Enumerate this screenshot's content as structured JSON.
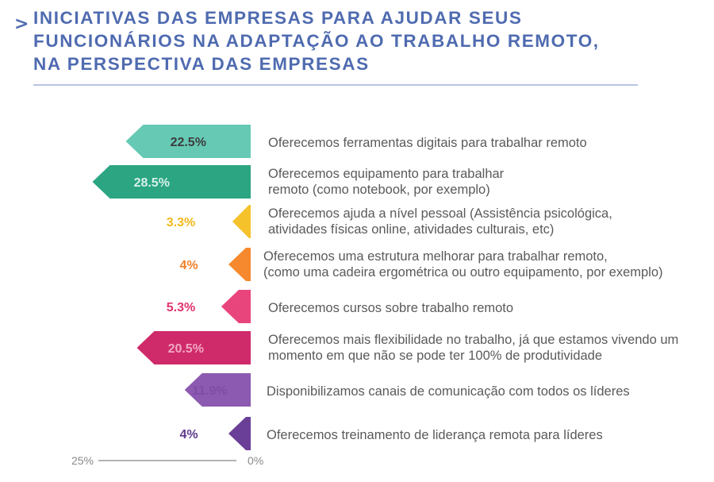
{
  "header": {
    "chevron": ">",
    "title_lines": [
      "INICIATIVAS DAS EMPRESAS PARA AJUDAR SEUS",
      "FUNCIONÁRIOS NA ADAPTAÇÃO AO TRABALHO REMOTO,",
      "NA PERSPECTIVA DAS EMPRESAS"
    ]
  },
  "chart_data": {
    "type": "bar",
    "orientation": "horizontal",
    "unit": "%",
    "axis": {
      "left_label": "25%",
      "right_label": "0%"
    },
    "categories": [
      [
        "Oferecemos ferramentas digitais para trabalhar remoto"
      ],
      [
        "Oferecemos equipamento para trabalhar",
        "remoto (como notebook, por exemplo)"
      ],
      [
        "Oferecemos ajuda a nível pessoal (Assistência psicológica,",
        "atividades físicas online, atividades culturais, etc)"
      ],
      [
        "Oferecemos uma estrutura melhorar para trabalhar remoto,",
        "(como uma cadeira ergométrica ou outro equipamento, por exemplo)"
      ],
      [
        "Oferecemos cursos sobre trabalho remoto"
      ],
      [
        "Oferecemos mais flexibilidade no trabalho, já que estamos vivendo um",
        "momento em que não se pode ter 100% de produtividade"
      ],
      [
        "Disponibilizamos canais de comunicação com todos os líderes"
      ],
      [
        "Oferecemos treinamento de liderança remota para líderes"
      ]
    ],
    "values": [
      22.5,
      28.5,
      3.3,
      4,
      5.3,
      20.5,
      11.9,
      4
    ],
    "value_labels": [
      "22.5%",
      "28.5%",
      "3.3%",
      "4%",
      "5.3%",
      "20.5%",
      "11.9%",
      "4%"
    ],
    "colors": [
      "#66c9b4",
      "#2ba582",
      "#f5c22c",
      "#f6892d",
      "#e9457d",
      "#cf2a6a",
      "#8c5ab0",
      "#6a3f97"
    ],
    "value_label_colors": [
      "#3d3d3d",
      "#d7f1ea",
      "#f3b91d",
      "#f2802a",
      "#e0336f",
      "#f0a8c2",
      "#7e4da6",
      "#5e3a8e"
    ]
  }
}
